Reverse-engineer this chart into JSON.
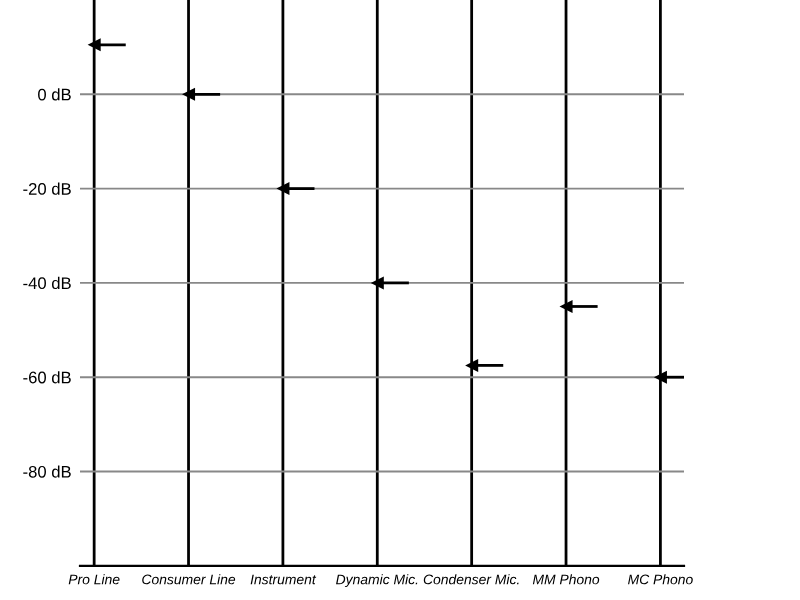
{
  "chart_data": {
    "type": "scatter",
    "categories": [
      "Pro Line",
      "Consumer Line",
      "Instrument",
      "Dynamic Mic.",
      "Condenser Mic.",
      "MM Phono",
      "MC Phono"
    ],
    "series": [
      {
        "color": "#000000",
        "values": [
          10.5,
          0,
          -20,
          -40,
          -57.5,
          -45,
          -60
        ]
      }
    ],
    "ylim": [
      -100,
      20
    ],
    "yticks": [
      {
        "value": -80,
        "label": "-80 dB"
      },
      {
        "value": -60,
        "label": "-60 dB"
      },
      {
        "value": -40,
        "label": "-40 dB"
      },
      {
        "value": -20,
        "label": "-20 dB"
      },
      {
        "value": 0,
        "label": "0 dB"
      }
    ],
    "grid": true,
    "marker": "triangle"
  }
}
